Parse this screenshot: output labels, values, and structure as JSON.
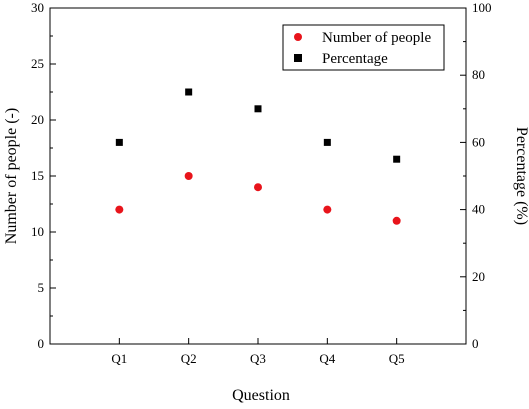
{
  "chart_data": {
    "type": "scatter",
    "categories": [
      "Q1",
      "Q2",
      "Q3",
      "Q4",
      "Q5"
    ],
    "xlabel": "Question",
    "ylabel_left": "Number of people (-)",
    "ylabel_right": "Percentage (%)",
    "ylim_left": [
      0,
      30
    ],
    "ylim_right": [
      0,
      100
    ],
    "yticks_left": [
      0,
      5,
      10,
      15,
      20,
      25,
      30
    ],
    "yticks_right": [
      0,
      20,
      40,
      60,
      80,
      100
    ],
    "grid": false,
    "legend_position": "top-right",
    "series": [
      {
        "name": "Number of people",
        "axis": "left",
        "marker": "circle",
        "color": "#e8141b",
        "values": [
          12,
          15,
          14,
          12,
          11
        ]
      },
      {
        "name": "Percentage",
        "axis": "right",
        "marker": "square",
        "color": "#000000",
        "values": [
          60,
          75,
          70,
          60,
          55
        ]
      }
    ]
  }
}
